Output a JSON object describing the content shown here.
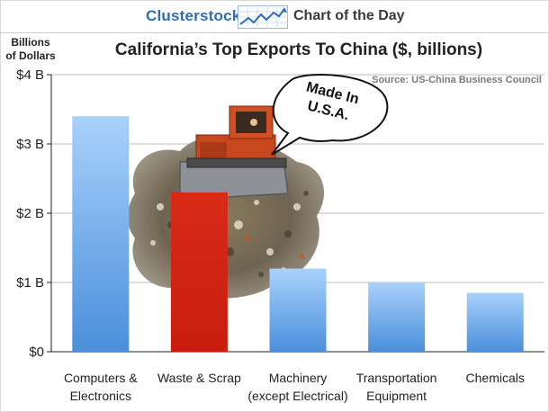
{
  "header": {
    "brand": "Clusterstock",
    "subtitle": "Chart of the Day"
  },
  "chart_data": {
    "type": "bar",
    "title": "California’s Top Exports To China ($, billions)",
    "source": "Source: US-China Business Council",
    "ylabel_lines": [
      "Billions",
      "of Dollars"
    ],
    "categories": [
      [
        "Computers &",
        "Electronics"
      ],
      [
        "Waste & Scrap"
      ],
      [
        "Machinery",
        "(except Electrical)"
      ],
      [
        "Transportation",
        "Equipment"
      ],
      [
        "Chemicals"
      ]
    ],
    "values": [
      3.4,
      2.3,
      1.2,
      1.0,
      0.85
    ],
    "highlight_index": 1,
    "ylim": [
      0,
      4
    ],
    "yticks": [
      {
        "value": 0,
        "label": "$0"
      },
      {
        "value": 1,
        "label": "$1 B"
      },
      {
        "value": 2,
        "label": "$2 B"
      },
      {
        "value": 3,
        "label": "$3 B"
      },
      {
        "value": 4,
        "label": "$4 B"
      }
    ],
    "grid": true,
    "colors": {
      "bar": "#7fb6ee",
      "bar_dark": "#4c8fdb",
      "highlight": "#d42412",
      "grid": "#bdbdbd"
    },
    "annotation": {
      "lines": [
        "Made In",
        "U.S.A."
      ]
    }
  }
}
